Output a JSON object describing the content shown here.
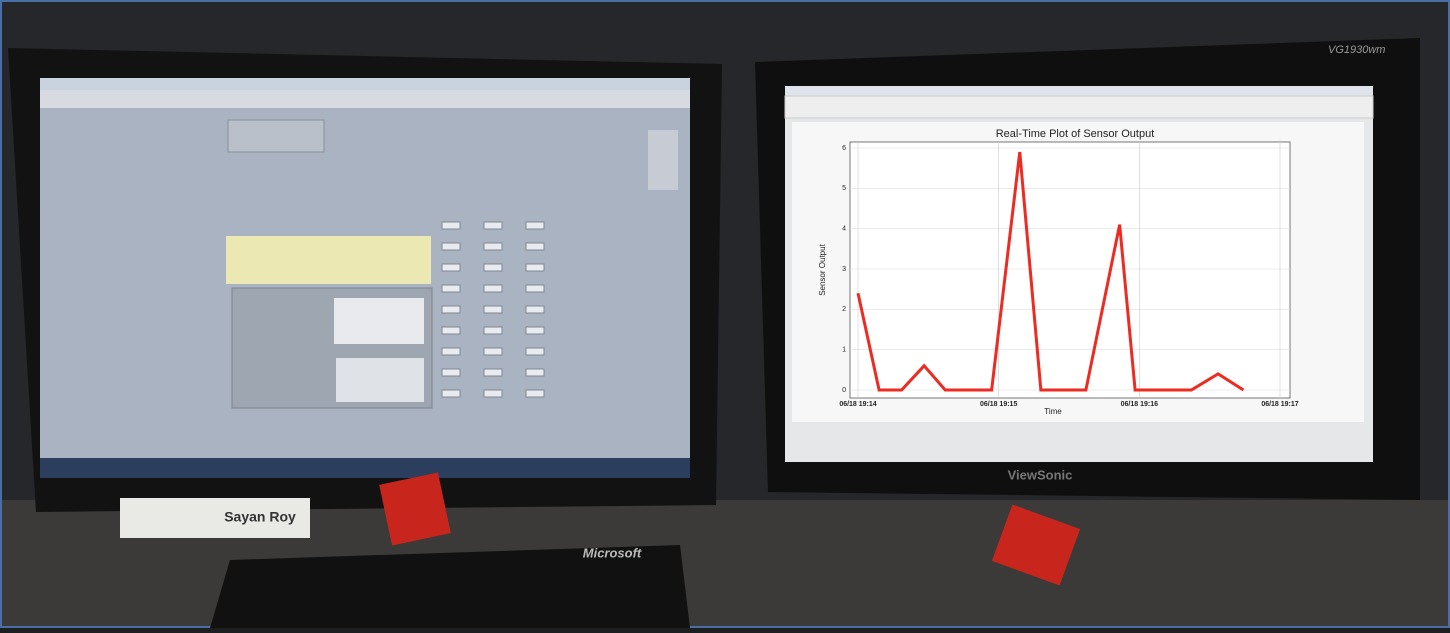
{
  "photo": {
    "name_plate": "Sayan Roy",
    "keyboard_brand": "Microsoft",
    "monitor_brand": "ViewSonic",
    "monitor_model": "VG1930wm"
  },
  "chart_data": {
    "type": "line",
    "title": "Real-Time Plot of Sensor Output",
    "x_label": "Time",
    "y_label": "Sensor Output",
    "x": [
      0,
      0.15,
      0.31,
      0.47,
      0.62,
      0.95,
      1.15,
      1.3,
      1.62,
      1.86,
      1.97,
      2.37,
      2.56,
      2.74
    ],
    "values": [
      2.4,
      0,
      0,
      0.6,
      0,
      0,
      5.9,
      0,
      0,
      4.1,
      0,
      0,
      0.4,
      0
    ],
    "color": "#ee2b22",
    "xlim": [
      0,
      3
    ],
    "ylim": [
      0,
      6
    ],
    "xticks": [
      {
        "value": 0,
        "label": "06/18 19:14"
      },
      {
        "value": 1,
        "label": "06/18 19:15"
      },
      {
        "value": 2,
        "label": "06/18 19:16"
      },
      {
        "value": 3,
        "label": "06/18 19:17"
      }
    ],
    "yticks": [
      0,
      1,
      2,
      3,
      4,
      5,
      6
    ],
    "grid": true
  }
}
